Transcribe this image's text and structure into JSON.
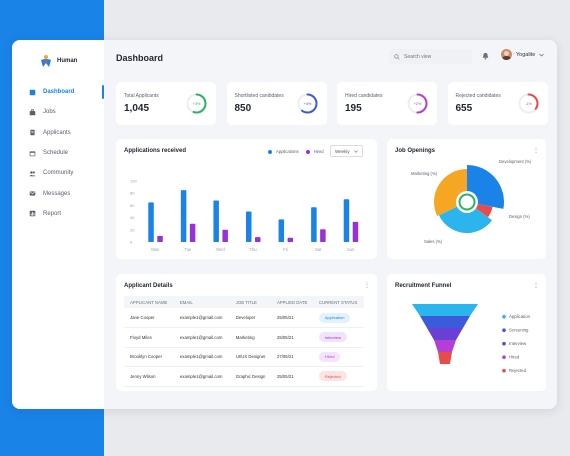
{
  "brand": {
    "name": "Human"
  },
  "colors": {
    "accent": "#1a83e8",
    "purple": "#9b30d6",
    "green": "#28b463",
    "orange": "#f5a623",
    "red": "#e84b4b"
  },
  "sidebar": {
    "items": [
      {
        "label": "Dashboard",
        "icon": "home-icon",
        "active": true
      },
      {
        "label": "Jobs",
        "icon": "briefcase-icon",
        "active": false
      },
      {
        "label": "Applicants",
        "icon": "clipboard-icon",
        "active": false
      },
      {
        "label": "Schedule",
        "icon": "calendar-icon",
        "active": false
      },
      {
        "label": "Community",
        "icon": "users-icon",
        "active": false
      },
      {
        "label": "Messages",
        "icon": "mail-icon",
        "active": false
      },
      {
        "label": "Report",
        "icon": "report-icon",
        "active": false
      }
    ]
  },
  "header": {
    "title": "Dashboard",
    "search_placeholder": "Search view",
    "user_name": "Yogalite"
  },
  "stats": [
    {
      "label": "Total Applicants",
      "value": "1,045",
      "badge": "+3%",
      "color": "#28b463",
      "progress": 0.55
    },
    {
      "label": "Shortlisted candidates",
      "value": "850",
      "badge": "+4%",
      "color": "#3b5bdb",
      "progress": 0.6
    },
    {
      "label": "Hired candidates",
      "value": "195",
      "badge": "+2%",
      "color": "#b43fd6",
      "progress": 0.5
    },
    {
      "label": "Rejected candidates",
      "value": "655",
      "badge": "-1%",
      "color": "#e84b4b",
      "progress": 0.35
    }
  ],
  "applications": {
    "title": "Applications received",
    "legend_applications": "Applications",
    "legend_hired": "Hired",
    "period": "Weekly"
  },
  "chart_data": {
    "type": "bar",
    "categories": [
      "Mon",
      "Tue",
      "Wed",
      "Thu",
      "Fri",
      "Sat",
      "Sun"
    ],
    "series": [
      {
        "name": "Applications",
        "values": [
          65,
          85,
          68,
          50,
          37,
          57,
          70
        ]
      },
      {
        "name": "Hired",
        "values": [
          10,
          30,
          20,
          8,
          7,
          21,
          33
        ]
      }
    ],
    "yticks": [
      "0",
      "20",
      "40",
      "60",
      "80",
      "100"
    ],
    "ylim": [
      0,
      100
    ]
  },
  "job_openings": {
    "title": "Job Openings",
    "segments": [
      {
        "label": "Development (%)",
        "value": 28,
        "color": "#1a83e8"
      },
      {
        "label": "Design (%)",
        "value": 7,
        "color": "#e84b4b"
      },
      {
        "label": "Sales (%)",
        "value": 33,
        "color": "#2bb5ec"
      },
      {
        "label": "Marketing (%)",
        "value": 32,
        "color": "#f5a623"
      }
    ]
  },
  "applicant_details": {
    "title": "Applicant Details",
    "columns": [
      "APPLICANT NAME",
      "EMAIL",
      "JOB TITLE",
      "APPLIED DATE",
      "CURRENT STATUS"
    ],
    "rows": [
      {
        "name": "Jane Cooper",
        "email": "example1@gmail.com",
        "job": "Developer",
        "date": "25/05/21",
        "status": "Application",
        "status_bg": "#e3f1fd",
        "status_fg": "#1a83e8"
      },
      {
        "name": "Floyd Miles",
        "email": "example1@gmail.com",
        "job": "Marketing",
        "date": "25/05/21",
        "status": "Interview",
        "status_bg": "#f0e4fb",
        "status_fg": "#9b30d6"
      },
      {
        "name": "Brooklyn Cooper",
        "email": "example1@gmail.com",
        "job": "UI/UX Designer",
        "date": "27/05/21",
        "status": "Hired",
        "status_bg": "#f3e3fb",
        "status_fg": "#b43fd6"
      },
      {
        "name": "Jenny Wilson",
        "email": "example1@gmail.com",
        "job": "Graphic Design",
        "date": "25/05/21",
        "status": "Rejected",
        "status_bg": "#fde4e4",
        "status_fg": "#e84b4b"
      }
    ]
  },
  "funnel": {
    "title": "Recruitment Funnel",
    "stages": [
      {
        "label": "Application",
        "color": "#2bb5ec"
      },
      {
        "label": "Screening",
        "color": "#3b5bdb"
      },
      {
        "label": "Interview",
        "color": "#6a3fd6"
      },
      {
        "label": "Hired",
        "color": "#b43fd6"
      },
      {
        "label": "Rejected",
        "color": "#e84b4b"
      }
    ]
  }
}
